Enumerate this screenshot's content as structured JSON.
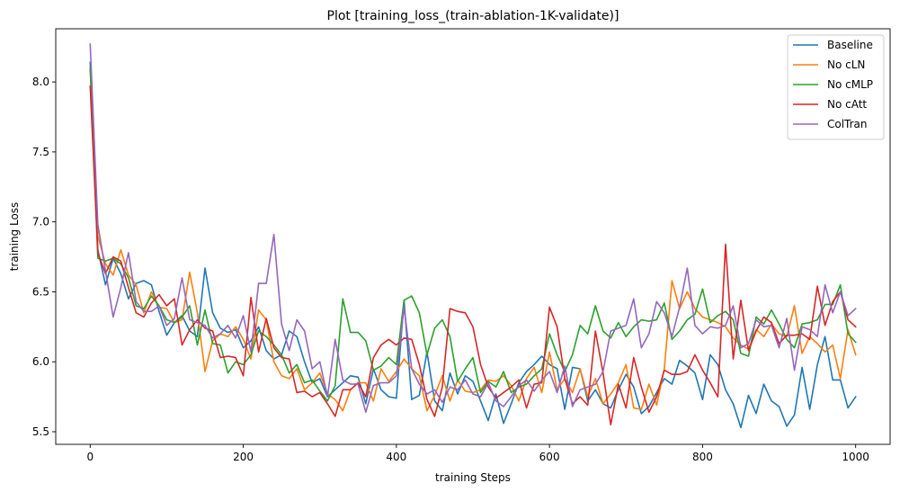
{
  "chart_data": {
    "type": "line",
    "title": "Plot [training_loss_(train-ablation-1K-validate)]",
    "xlabel": "training Steps",
    "ylabel": "training Loss",
    "xlim": [
      -45,
      1045
    ],
    "ylim": [
      5.41,
      8.38
    ],
    "xticks": [
      0,
      200,
      400,
      600,
      800,
      1000
    ],
    "yticks": [
      5.5,
      6.0,
      6.5,
      7.0,
      7.5,
      8.0
    ],
    "xtick_labels": [
      "0",
      "200",
      "400",
      "600",
      "800",
      "1000"
    ],
    "ytick_labels": [
      "5.5",
      "6.0",
      "6.5",
      "7.0",
      "7.5",
      "8.0"
    ],
    "legend_position": "top-right",
    "grid": false,
    "series": [
      {
        "name": "Baseline",
        "color": "#1f77b4",
        "x": [
          0,
          10,
          20,
          30,
          40,
          50,
          60,
          70,
          80,
          90,
          100,
          110,
          120,
          130,
          140,
          150,
          160,
          170,
          180,
          190,
          200,
          210,
          220,
          230,
          240,
          250,
          260,
          270,
          280,
          290,
          300,
          310,
          320,
          330,
          340,
          350,
          360,
          370,
          380,
          390,
          400,
          410,
          420,
          430,
          440,
          450,
          460,
          470,
          480,
          490,
          500,
          510,
          520,
          530,
          540,
          550,
          560,
          570,
          580,
          590,
          600,
          610,
          620,
          630,
          640,
          650,
          660,
          670,
          680,
          690,
          700,
          710,
          720,
          730,
          740,
          750,
          760,
          770,
          780,
          790,
          800,
          810,
          820,
          830,
          840,
          850,
          860,
          870,
          880,
          890,
          900,
          910,
          920,
          930,
          940,
          950,
          960,
          970,
          980,
          990,
          1000
        ],
        "y": [
          8.14,
          6.8,
          6.55,
          6.74,
          6.63,
          6.45,
          6.56,
          6.58,
          6.55,
          6.36,
          6.19,
          6.28,
          6.33,
          6.22,
          6.18,
          6.67,
          6.35,
          6.24,
          6.21,
          6.23,
          6.1,
          6.15,
          6.25,
          6.08,
          6.02,
          6.05,
          6.22,
          6.18,
          6.0,
          5.85,
          5.88,
          5.75,
          5.8,
          5.85,
          5.9,
          5.89,
          5.7,
          5.95,
          5.8,
          5.75,
          5.74,
          6.44,
          5.73,
          5.76,
          6.07,
          5.72,
          5.65,
          5.92,
          5.77,
          5.9,
          5.86,
          5.72,
          5.58,
          5.77,
          5.56,
          5.7,
          5.85,
          5.93,
          5.98,
          6.04,
          5.98,
          5.95,
          5.66,
          5.96,
          5.95,
          5.72,
          5.8,
          5.7,
          5.67,
          5.8,
          5.91,
          5.82,
          5.63,
          5.68,
          5.78,
          5.88,
          5.84,
          6.01,
          5.97,
          5.92,
          5.73,
          6.05,
          5.98,
          5.8,
          5.7,
          5.53,
          5.76,
          5.63,
          5.84,
          5.72,
          5.68,
          5.54,
          5.62,
          5.96,
          5.66,
          5.98,
          6.18,
          5.87,
          5.87,
          5.67,
          5.75
        ]
      },
      {
        "name": "No cLN",
        "color": "#ff7f0e",
        "x": [
          0,
          10,
          20,
          30,
          40,
          50,
          60,
          70,
          80,
          90,
          100,
          110,
          120,
          130,
          140,
          150,
          160,
          170,
          180,
          190,
          200,
          210,
          220,
          230,
          240,
          250,
          260,
          270,
          280,
          290,
          300,
          310,
          320,
          330,
          340,
          350,
          360,
          370,
          380,
          390,
          400,
          410,
          420,
          430,
          440,
          450,
          460,
          470,
          480,
          490,
          500,
          510,
          520,
          530,
          540,
          550,
          560,
          570,
          580,
          590,
          600,
          610,
          620,
          630,
          640,
          650,
          660,
          670,
          680,
          690,
          700,
          710,
          720,
          730,
          740,
          750,
          760,
          770,
          780,
          790,
          800,
          810,
          820,
          830,
          840,
          850,
          860,
          870,
          880,
          890,
          900,
          910,
          920,
          930,
          940,
          950,
          960,
          970,
          980,
          990,
          1000
        ],
        "y": [
          8.1,
          6.9,
          6.7,
          6.62,
          6.8,
          6.62,
          6.55,
          6.35,
          6.5,
          6.39,
          6.38,
          6.28,
          6.3,
          6.64,
          6.35,
          5.93,
          6.15,
          6.2,
          6.18,
          6.25,
          6.16,
          6.02,
          6.37,
          6.3,
          6.0,
          5.9,
          5.88,
          5.95,
          5.8,
          5.85,
          5.92,
          5.77,
          5.73,
          5.65,
          5.8,
          5.85,
          5.85,
          5.72,
          5.95,
          5.86,
          5.93,
          6.02,
          5.95,
          5.9,
          5.65,
          5.76,
          5.9,
          5.72,
          5.87,
          5.79,
          5.78,
          5.8,
          5.87,
          5.86,
          5.9,
          5.83,
          5.72,
          5.88,
          5.96,
          5.78,
          6.07,
          5.8,
          5.88,
          5.78,
          5.95,
          5.75,
          5.88,
          5.7,
          5.77,
          5.85,
          5.98,
          5.67,
          5.66,
          5.84,
          5.69,
          5.95,
          6.58,
          6.38,
          6.5,
          6.38,
          6.32,
          6.3,
          6.28,
          6.25,
          6.17,
          6.12,
          6.09,
          6.23,
          6.18,
          6.27,
          6.2,
          6.18,
          6.4,
          6.06,
          6.18,
          6.13,
          6.07,
          6.12,
          5.88,
          6.23,
          6.05
        ]
      },
      {
        "name": "No cMLP",
        "color": "#2ca02c",
        "x": [
          0,
          10,
          20,
          30,
          40,
          50,
          60,
          70,
          80,
          90,
          100,
          110,
          120,
          130,
          140,
          150,
          160,
          170,
          180,
          190,
          200,
          210,
          220,
          230,
          240,
          250,
          260,
          270,
          280,
          290,
          300,
          310,
          320,
          330,
          340,
          350,
          360,
          370,
          380,
          390,
          400,
          410,
          420,
          430,
          440,
          450,
          460,
          470,
          480,
          490,
          500,
          510,
          520,
          530,
          540,
          550,
          560,
          570,
          580,
          590,
          600,
          610,
          620,
          630,
          640,
          650,
          660,
          670,
          680,
          690,
          700,
          710,
          720,
          730,
          740,
          750,
          760,
          770,
          780,
          790,
          800,
          810,
          820,
          830,
          840,
          850,
          860,
          870,
          880,
          890,
          900,
          910,
          920,
          930,
          940,
          950,
          960,
          970,
          980,
          990,
          1000
        ],
        "y": [
          8.1,
          6.74,
          6.72,
          6.74,
          6.7,
          6.6,
          6.4,
          6.38,
          6.47,
          6.4,
          6.3,
          6.28,
          6.32,
          6.4,
          6.12,
          6.37,
          6.13,
          6.12,
          5.92,
          6.0,
          5.98,
          6.05,
          6.22,
          6.18,
          6.12,
          6.05,
          5.92,
          5.98,
          5.85,
          5.87,
          5.79,
          5.72,
          5.83,
          6.45,
          6.21,
          6.21,
          6.15,
          5.94,
          5.97,
          6.03,
          5.98,
          6.44,
          6.47,
          6.35,
          6.05,
          6.24,
          6.3,
          6.18,
          5.86,
          5.95,
          6.03,
          5.78,
          5.86,
          5.82,
          5.93,
          5.78,
          5.82,
          5.84,
          5.9,
          5.95,
          6.2,
          6.05,
          5.93,
          6.05,
          6.26,
          6.2,
          6.4,
          6.22,
          6.17,
          6.28,
          6.18,
          6.25,
          6.3,
          6.29,
          6.3,
          6.42,
          6.16,
          6.22,
          6.3,
          6.34,
          6.52,
          6.28,
          6.33,
          6.36,
          6.3,
          6.06,
          6.04,
          6.32,
          6.27,
          6.37,
          6.27,
          6.16,
          6.1,
          6.27,
          6.28,
          6.3,
          6.41,
          6.41,
          6.55,
          6.2,
          6.14
        ]
      },
      {
        "name": "No cAtt",
        "color": "#d62728",
        "x": [
          0,
          10,
          20,
          30,
          40,
          50,
          60,
          70,
          80,
          90,
          100,
          110,
          120,
          130,
          140,
          150,
          160,
          170,
          180,
          190,
          200,
          210,
          220,
          230,
          240,
          250,
          260,
          270,
          280,
          290,
          300,
          310,
          320,
          330,
          340,
          350,
          360,
          370,
          380,
          390,
          400,
          410,
          420,
          430,
          440,
          450,
          460,
          470,
          480,
          490,
          500,
          510,
          520,
          530,
          540,
          550,
          560,
          570,
          580,
          590,
          600,
          610,
          620,
          630,
          640,
          650,
          660,
          670,
          680,
          690,
          700,
          710,
          720,
          730,
          740,
          750,
          760,
          770,
          780,
          790,
          800,
          810,
          820,
          830,
          840,
          850,
          860,
          870,
          880,
          890,
          900,
          910,
          920,
          930,
          940,
          950,
          960,
          970,
          980,
          990,
          1000
        ],
        "y": [
          7.97,
          6.78,
          6.63,
          6.75,
          6.72,
          6.53,
          6.35,
          6.32,
          6.42,
          6.48,
          6.4,
          6.45,
          6.12,
          6.23,
          6.3,
          6.24,
          6.22,
          6.03,
          6.04,
          6.03,
          5.9,
          6.46,
          6.07,
          6.31,
          6.1,
          6.03,
          6.02,
          5.78,
          5.79,
          5.75,
          5.78,
          5.7,
          5.61,
          5.8,
          5.8,
          5.85,
          5.75,
          6.03,
          6.12,
          6.16,
          6.12,
          6.17,
          6.16,
          5.98,
          5.73,
          5.61,
          5.82,
          6.38,
          6.36,
          6.35,
          6.25,
          5.98,
          5.82,
          5.74,
          5.78,
          5.82,
          5.87,
          5.67,
          5.84,
          5.85,
          6.39,
          6.25,
          5.88,
          5.7,
          5.75,
          5.69,
          6.22,
          5.92,
          5.55,
          5.84,
          5.67,
          6.03,
          5.82,
          5.64,
          5.75,
          5.94,
          5.91,
          5.91,
          5.93,
          6.05,
          5.94,
          5.85,
          5.75,
          6.84,
          6.02,
          6.44,
          6.08,
          6.22,
          6.32,
          6.28,
          6.13,
          6.19,
          6.19,
          6.2,
          6.16,
          6.54,
          6.26,
          6.43,
          6.5,
          6.3,
          6.25
        ]
      },
      {
        "name": "ColTran",
        "color": "#9467bd",
        "x": [
          0,
          10,
          20,
          30,
          40,
          50,
          60,
          70,
          80,
          90,
          100,
          110,
          120,
          130,
          140,
          150,
          160,
          170,
          180,
          190,
          200,
          210,
          220,
          230,
          240,
          250,
          260,
          270,
          280,
          290,
          300,
          310,
          320,
          330,
          340,
          350,
          360,
          370,
          380,
          390,
          400,
          410,
          420,
          430,
          440,
          450,
          460,
          470,
          480,
          490,
          500,
          510,
          520,
          530,
          540,
          550,
          560,
          570,
          580,
          590,
          600,
          610,
          620,
          630,
          640,
          650,
          660,
          670,
          680,
          690,
          700,
          710,
          720,
          730,
          740,
          750,
          760,
          770,
          780,
          790,
          800,
          810,
          820,
          830,
          840,
          850,
          860,
          870,
          880,
          890,
          900,
          910,
          920,
          930,
          940,
          950,
          960,
          970,
          980,
          990,
          1000
        ],
        "y": [
          8.27,
          6.98,
          6.65,
          6.32,
          6.53,
          6.78,
          6.43,
          6.36,
          6.36,
          6.4,
          6.26,
          6.31,
          6.6,
          6.3,
          6.28,
          6.26,
          6.17,
          6.2,
          6.26,
          6.17,
          6.33,
          6.07,
          6.56,
          6.56,
          6.91,
          6.27,
          6.08,
          6.3,
          6.22,
          5.95,
          6.0,
          5.75,
          6.16,
          5.87,
          5.84,
          5.84,
          5.64,
          5.83,
          5.85,
          5.85,
          5.9,
          6.39,
          5.95,
          5.84,
          5.77,
          5.8,
          5.71,
          5.82,
          5.8,
          5.87,
          5.77,
          5.75,
          5.85,
          5.72,
          5.68,
          5.75,
          5.83,
          5.87,
          5.79,
          5.87,
          5.93,
          5.78,
          5.97,
          5.68,
          5.8,
          5.82,
          5.84,
          5.93,
          6.22,
          6.24,
          6.26,
          6.45,
          6.1,
          6.2,
          6.43,
          6.35,
          6.18,
          6.39,
          6.67,
          6.26,
          6.2,
          6.25,
          6.24,
          6.26,
          6.4,
          6.1,
          6.13,
          6.3,
          6.25,
          6.26,
          6.1,
          6.31,
          5.94,
          6.25,
          6.23,
          6.18,
          6.55,
          6.35,
          6.5,
          6.33,
          6.38
        ]
      }
    ]
  }
}
